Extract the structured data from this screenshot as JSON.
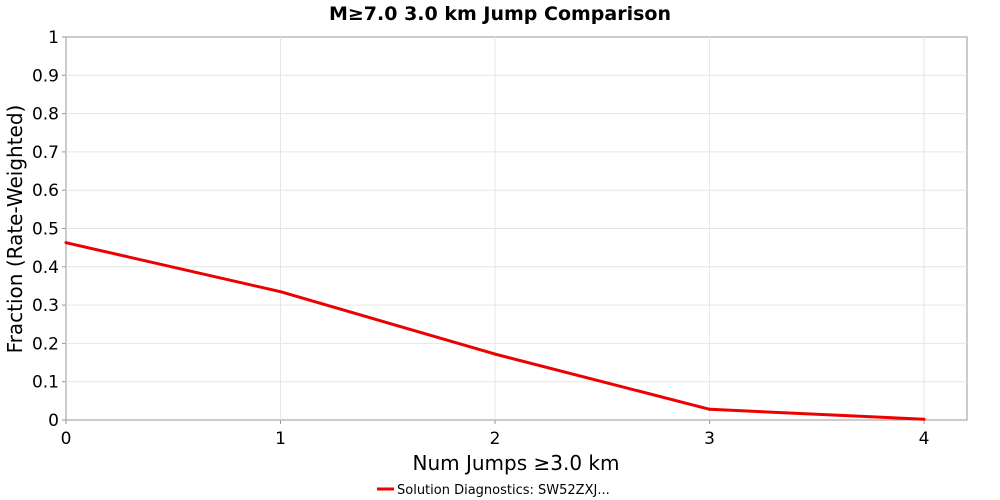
{
  "chart_data": {
    "type": "line",
    "title": "M≥7.0 3.0 km Jump Comparison",
    "xlabel": "Num Jumps ≥3.0 km",
    "ylabel": "Fraction (Rate-Weighted)",
    "xlim": [
      0,
      4.2
    ],
    "ylim": [
      0,
      1
    ],
    "x_ticks": [
      "0",
      "1",
      "2",
      "3",
      "4"
    ],
    "y_ticks": [
      "0",
      "0.1",
      "0.2",
      "0.3",
      "0.4",
      "0.5",
      "0.6",
      "0.7",
      "0.8",
      "0.9",
      "1"
    ],
    "grid": true,
    "legend_position": "bottom-center",
    "series": [
      {
        "name": "Solution Diagnostics: SW52ZXJ...",
        "color": "#ee0000",
        "x": [
          0,
          1,
          2,
          3,
          4
        ],
        "y": [
          0.463,
          0.335,
          0.172,
          0.028,
          0.002
        ]
      }
    ]
  }
}
